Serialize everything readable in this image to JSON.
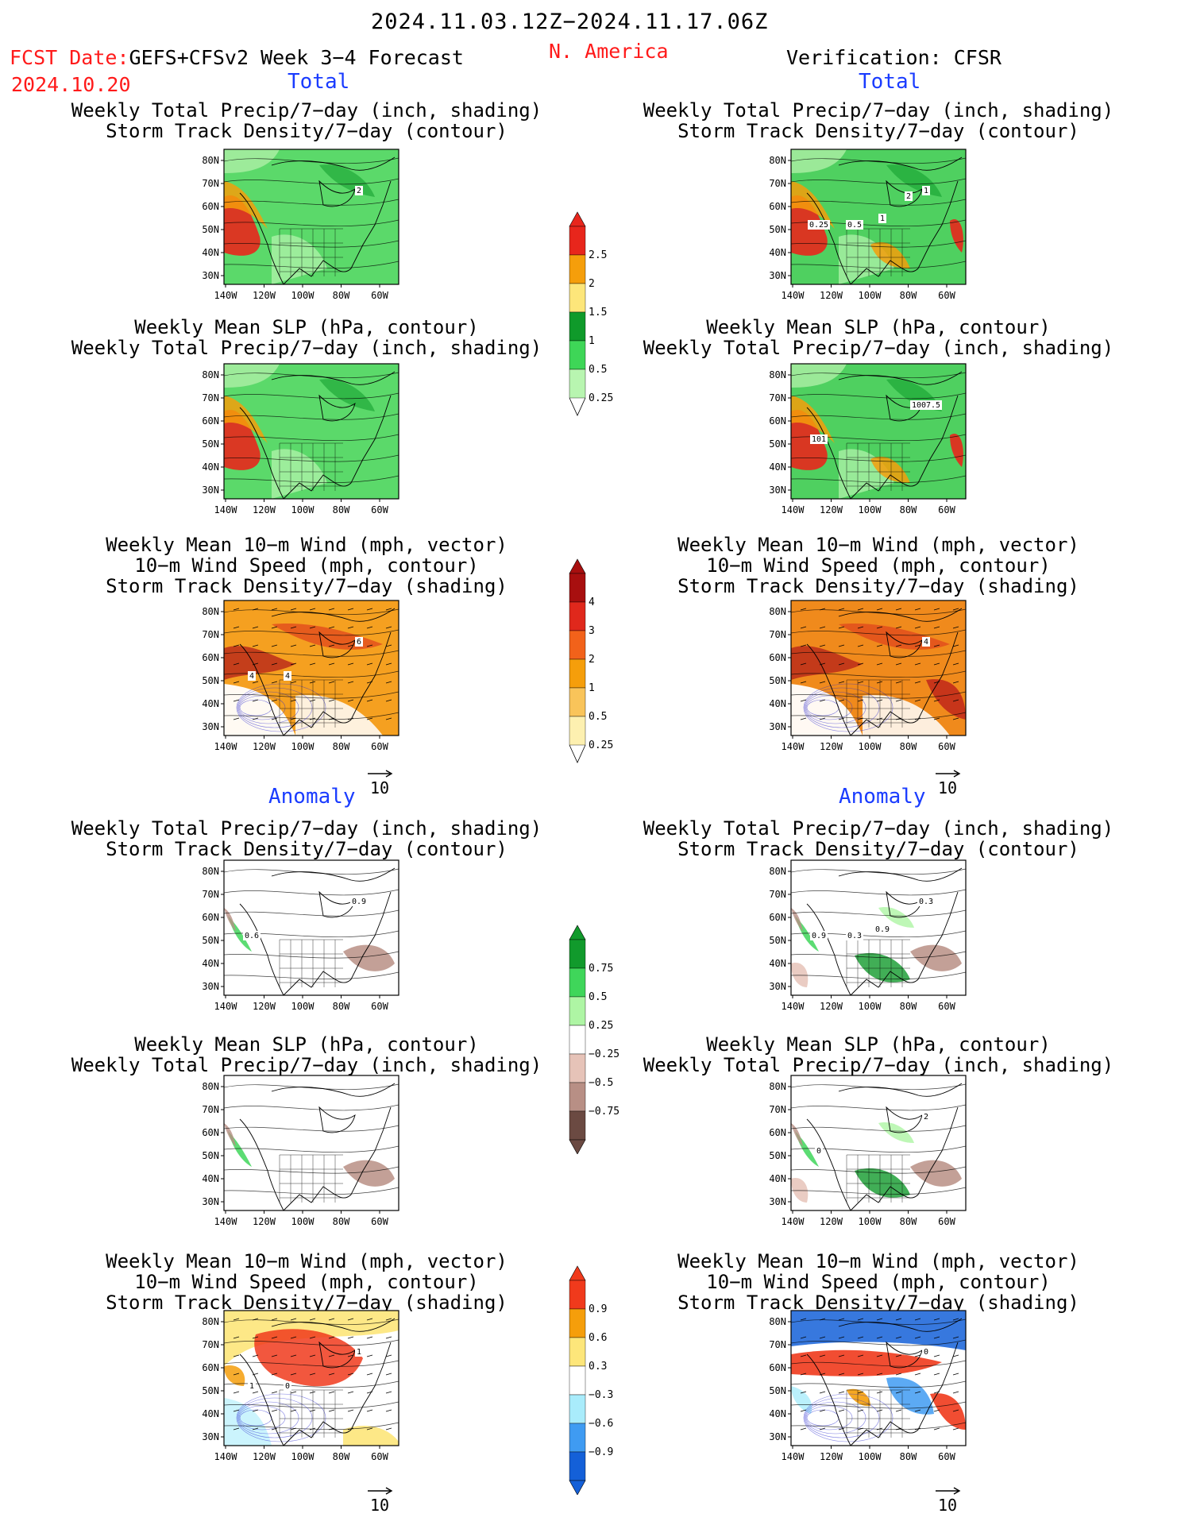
{
  "header": {
    "period": "2024.11.03.12Z−2024.11.17.06Z",
    "fcst_label": "FCST Date:",
    "fcst_model": "GEFS+CFSv2 Week 3−4 Forecast",
    "fcst_date": "2024.10.20",
    "region": "N. America",
    "verification": "Verification: CFSR"
  },
  "sections": {
    "total": "Total",
    "anomaly": "Anomaly"
  },
  "captions": {
    "precip_storm": [
      "Weekly Total Precip/7−day (inch, shading)",
      "Storm Track Density/7−day (contour)"
    ],
    "slp_precip": [
      "Weekly Mean SLP (hPa, contour)",
      "Weekly Total Precip/7−day (inch, shading)"
    ],
    "wind_storm": [
      "Weekly Mean 10−m Wind (mph, vector)",
      "10−m Wind Speed (mph, contour)",
      "Storm Track Density/7−day (shading)"
    ]
  },
  "axes": {
    "lat_labels": [
      "80N",
      "70N",
      "60N",
      "50N",
      "40N",
      "30N"
    ],
    "lon_labels": [
      "140W",
      "120W",
      "100W",
      "80W",
      "60W"
    ]
  },
  "panel_labels": {
    "fc_total_precip": [
      "2"
    ],
    "obs_total_precip": [
      "1",
      "0.25",
      "0.5",
      "1",
      "2"
    ],
    "obs_total_slp": [
      "1007.5",
      "101"
    ],
    "fc_total_wind": [
      "6",
      "4",
      "4"
    ],
    "obs_total_wind": [
      "4"
    ],
    "fc_anom_precip": [
      "0.9",
      "0.6"
    ],
    "obs_anom_precip": [
      "0.3",
      "0.9",
      "0.3",
      "0.9"
    ],
    "obs_anom_slp": [
      "2",
      "0"
    ],
    "fc_anom_wind": [
      "1",
      "1",
      "0"
    ],
    "obs_anom_wind": [
      "0"
    ]
  },
  "vector_ref": "10",
  "colorbars": {
    "total_precip": {
      "labels": [
        "2.5",
        "2",
        "1.5",
        "1",
        "0.5",
        "0.25"
      ],
      "colors": [
        "#e8261c",
        "#f59e0b",
        "#fde67a",
        "#0f9a2a",
        "#3ed657",
        "#b8f5b0"
      ]
    },
    "total_storm": {
      "labels": [
        "4",
        "3",
        "2",
        "1",
        "0.5",
        "0.25"
      ],
      "colors": [
        "#a80f0f",
        "#e0281c",
        "#f2621a",
        "#f59e0b",
        "#f9c45a",
        "#fdf0b0"
      ]
    },
    "anom_precip": {
      "labels": [
        "0.75",
        "0.5",
        "0.25",
        "−0.25",
        "−0.5",
        "−0.75"
      ],
      "colors": [
        "#119a2c",
        "#3fd65a",
        "#aef5a4",
        "#ffffff",
        "#e6c3b8",
        "#b88f85",
        "#6b4a42"
      ]
    },
    "anom_storm": {
      "labels": [
        "0.9",
        "0.6",
        "0.3",
        "−0.3",
        "−0.6",
        "−0.9"
      ],
      "colors": [
        "#f03a1c",
        "#f59e0b",
        "#fde67a",
        "#ffffff",
        "#a9ecfb",
        "#3f9bf2",
        "#1460d8"
      ]
    }
  }
}
